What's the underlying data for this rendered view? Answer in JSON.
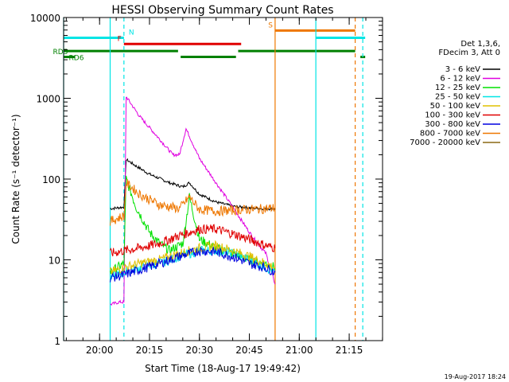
{
  "chart_data": {
    "type": "line",
    "title": "HESSI Observing Summary Count Rates",
    "xlabel": "Start Time (18-Aug-17 19:49:42)",
    "ylabel": "Count Rate (s⁻¹ detector⁻¹)",
    "y_scale": "log",
    "x_range_minutes": [
      19.82,
      21.417
    ],
    "x_units": "hours (UT decimal)",
    "ylim": [
      1,
      10000
    ],
    "x_ticks": [
      "20:00",
      "20:15",
      "20:30",
      "20:45",
      "21:00",
      "21:15"
    ],
    "y_ticks": [
      "1",
      "10",
      "100",
      "1000",
      "10000"
    ],
    "legend_header": [
      "Det 1,3,6,",
      "FDecim 3, Att 0"
    ],
    "footer_date": "19-Aug-2017 18:24",
    "flags": [
      {
        "label": "N",
        "color": "#00e5e5",
        "segments": [
          [
            19.82,
            20.122
          ],
          [
            21.083,
            21.33
          ]
        ],
        "level": 5600
      },
      {
        "label": "F",
        "color": "#e00000",
        "segments": [
          [
            20.122,
            20.709
          ]
        ],
        "level": 4700
      },
      {
        "label": "S",
        "color": "#ee7700",
        "segments": [
          [
            20.879,
            21.28
          ]
        ],
        "level": 6900
      },
      {
        "label": "RD5",
        "color": "#008000",
        "segments": [
          [
            19.82,
            20.393
          ],
          [
            20.694,
            21.28
          ]
        ],
        "level": 3850
      },
      {
        "label": "RD6",
        "color": "#008000",
        "segments": [
          [
            19.82,
            19.878
          ],
          [
            20.406,
            20.683
          ],
          [
            21.306,
            21.33
          ]
        ],
        "level": 3250
      }
    ],
    "vlines": [
      {
        "x": 19.82,
        "color": "#00e5e5",
        "style": "solid"
      },
      {
        "x": 20.053,
        "color": "#00e5e5",
        "style": "solid"
      },
      {
        "x": 20.122,
        "color": "#00e5e5",
        "style": "dashed"
      },
      {
        "x": 20.879,
        "color": "#ee7700",
        "style": "solid"
      },
      {
        "x": 21.083,
        "color": "#00e5e5",
        "style": "solid"
      },
      {
        "x": 21.28,
        "color": "#ee7700",
        "style": "dashed"
      },
      {
        "x": 21.318,
        "color": "#00e5e5",
        "style": "dashed"
      }
    ],
    "series": [
      {
        "name": "3 - 6 keV",
        "color": "#000000",
        "x": [
          20.053,
          20.122,
          20.133,
          20.183,
          20.25,
          20.35,
          20.417,
          20.45,
          20.5,
          20.583,
          20.667,
          20.75,
          20.833,
          20.879
        ],
        "y": [
          43,
          45,
          175,
          145,
          115,
          90,
          80,
          90,
          65,
          52,
          46,
          44,
          43,
          43
        ]
      },
      {
        "name": "6 - 12 keV",
        "color": "#e000e0",
        "x": [
          20.053,
          20.1,
          20.122,
          20.133,
          20.2,
          20.283,
          20.367,
          20.4,
          20.433,
          20.5,
          20.583,
          20.667,
          20.75,
          20.8,
          20.833,
          20.879
        ],
        "y": [
          2.8,
          3,
          3,
          1050,
          600,
          350,
          200,
          200,
          420,
          180,
          90,
          45,
          22,
          15,
          12,
          5
        ]
      },
      {
        "name": "12 - 25 keV",
        "color": "#00e000",
        "x": [
          20.053,
          20.122,
          20.133,
          20.183,
          20.25,
          20.3,
          20.35,
          20.417,
          20.45,
          20.5,
          20.583,
          20.667,
          20.75,
          20.833,
          20.879
        ],
        "y": [
          7,
          9,
          100,
          45,
          22,
          16,
          13,
          16,
          60,
          18,
          14,
          12,
          10,
          9,
          8
        ]
      },
      {
        "name": "25 - 50 keV",
        "color": "#00e5e5",
        "x": [
          20.053,
          20.122,
          20.2,
          20.3,
          20.4,
          20.5,
          20.583,
          20.667,
          20.75,
          20.833,
          20.879
        ],
        "y": [
          6,
          7,
          8,
          9,
          11,
          13,
          13,
          12,
          10,
          8,
          7
        ]
      },
      {
        "name": "50 - 100 keV",
        "color": "#e0c000",
        "x": [
          20.053,
          20.122,
          20.2,
          20.3,
          20.4,
          20.5,
          20.583,
          20.667,
          20.75,
          20.833,
          20.879
        ],
        "y": [
          7,
          8,
          9,
          10,
          12,
          14,
          15,
          13,
          11,
          9,
          8
        ]
      },
      {
        "name": "100 - 300 keV",
        "color": "#e00000",
        "x": [
          20.053,
          20.122,
          20.2,
          20.3,
          20.4,
          20.5,
          20.583,
          20.667,
          20.75,
          20.833,
          20.879
        ],
        "y": [
          12,
          13,
          14,
          16,
          20,
          24,
          24,
          21,
          18,
          15,
          14
        ]
      },
      {
        "name": "300 - 800 keV",
        "color": "#0000e0",
        "x": [
          20.053,
          20.122,
          20.2,
          20.3,
          20.4,
          20.5,
          20.583,
          20.667,
          20.75,
          20.833,
          20.879
        ],
        "y": [
          6,
          6.5,
          7.5,
          9,
          11,
          13,
          12.5,
          11,
          9,
          8,
          7
        ]
      },
      {
        "name": "800 - 7000 keV",
        "color": "#ee7700",
        "x": [
          20.053,
          20.122,
          20.133,
          20.2,
          20.3,
          20.4,
          20.45,
          20.5,
          20.583,
          20.667,
          20.75,
          20.833,
          20.879
        ],
        "y": [
          30,
          35,
          90,
          65,
          48,
          43,
          60,
          42,
          40,
          41,
          42,
          43,
          44
        ]
      },
      {
        "name": "7000 - 20000 keV",
        "color": "#8b6914",
        "x": [],
        "y": []
      }
    ]
  }
}
